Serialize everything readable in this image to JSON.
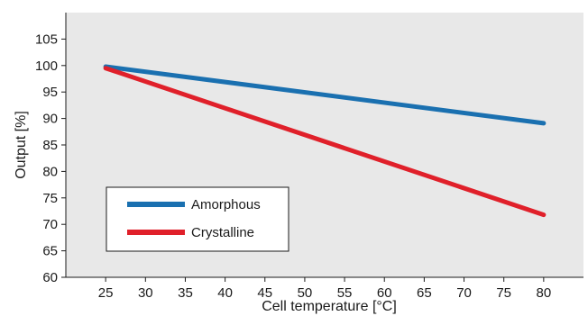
{
  "chart_data": {
    "type": "line",
    "title": "",
    "xlabel": "Cell temperature [°C]",
    "ylabel": "Output [%]",
    "xlim": [
      20,
      85
    ],
    "ylim": [
      60,
      110
    ],
    "x_ticks": [
      25,
      30,
      35,
      40,
      45,
      50,
      55,
      60,
      65,
      70,
      75,
      80
    ],
    "y_ticks": [
      60,
      65,
      70,
      75,
      80,
      85,
      90,
      95,
      100,
      105
    ],
    "grid": false,
    "legend_position": "bottom-left",
    "series": [
      {
        "name": "Amorphous",
        "color": "#1a70b0",
        "x": [
          25,
          80
        ],
        "y": [
          99.8,
          89.1
        ]
      },
      {
        "name": "Crystalline",
        "color": "#e0202a",
        "x": [
          25,
          80
        ],
        "y": [
          99.5,
          71.8
        ]
      }
    ]
  },
  "colors": {
    "plot_background": "#e8e8e8",
    "axis": "#1a1a1a"
  }
}
